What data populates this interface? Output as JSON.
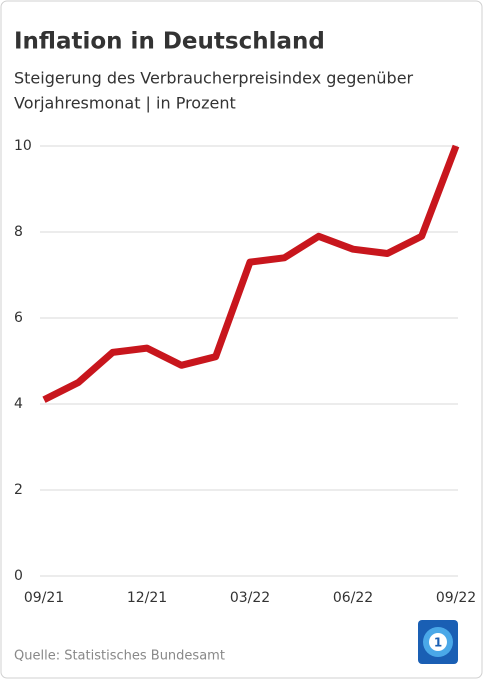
{
  "chart_data": {
    "type": "line",
    "title": "Inflation in Deutschland",
    "subtitle": [
      "Steigerung des Verbraucherpreisindex gegenüber",
      "Vorjahresmonat | in Prozent"
    ],
    "source": "Quelle: Statistisches Bundesamt",
    "categories": [
      "09/21",
      null,
      null,
      "12/21",
      null,
      null,
      "03/22",
      null,
      null,
      "06/22",
      null,
      null,
      "09/22"
    ],
    "series": [
      {
        "name": "Inflation",
        "color": "#c8161d",
        "values": [
          4.1,
          4.5,
          5.2,
          5.3,
          4.9,
          5.1,
          7.3,
          7.4,
          7.9,
          7.6,
          7.5,
          7.9,
          10.0
        ]
      }
    ],
    "ylim": [
      0,
      10
    ],
    "yticks": [
      0,
      2,
      4,
      6,
      8,
      10
    ],
    "grid": true
  }
}
